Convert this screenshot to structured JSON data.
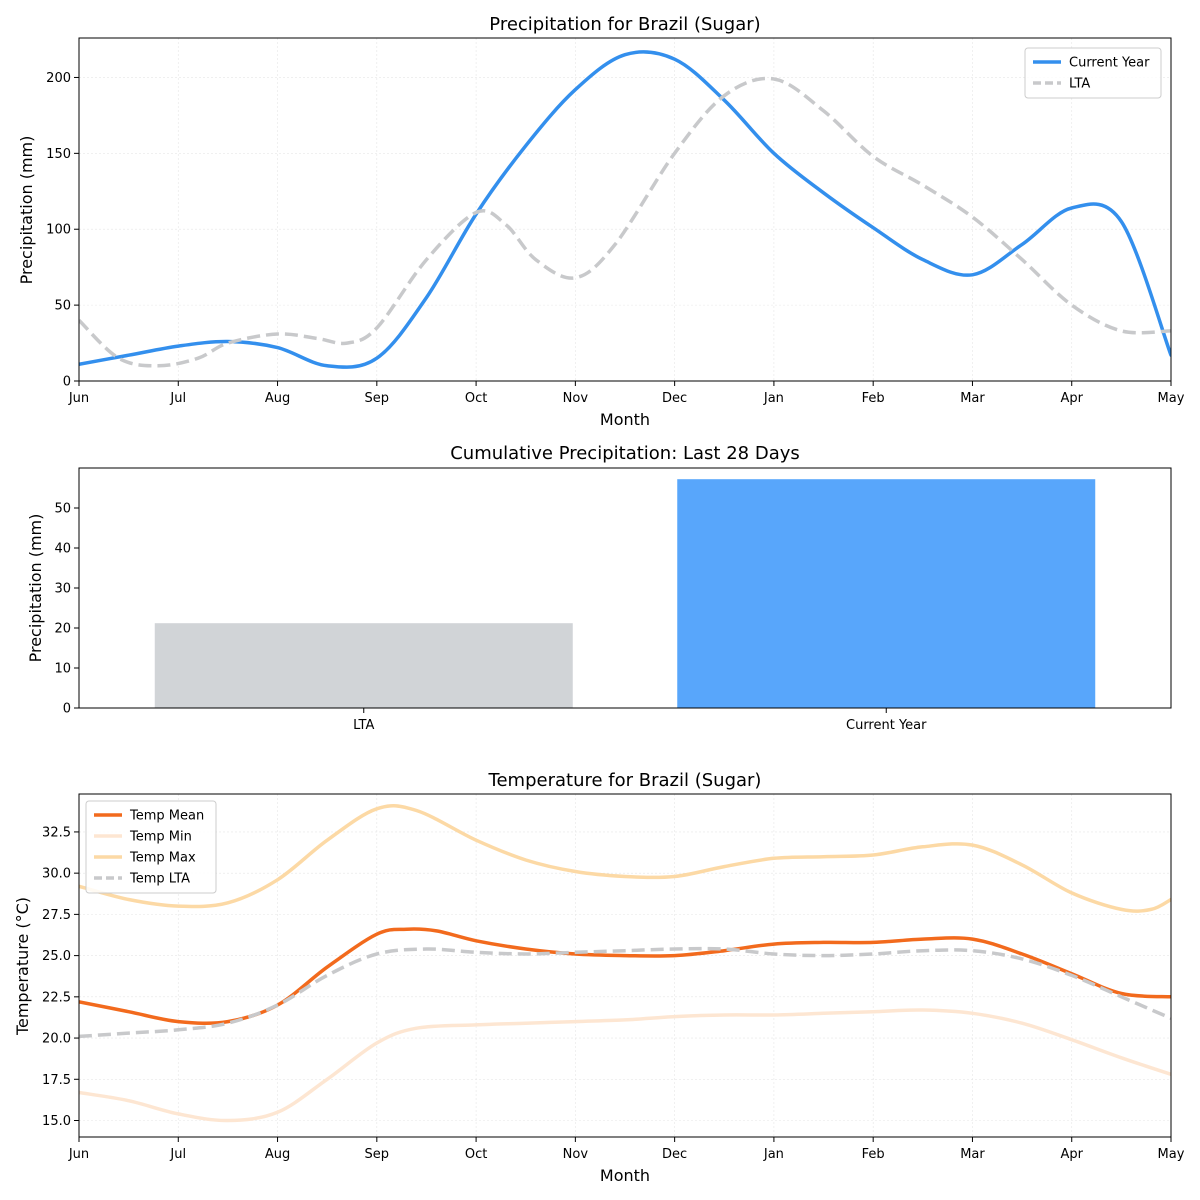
{
  "chart_data": [
    {
      "type": "line",
      "title": "Precipitation for Brazil (Sugar)",
      "xlabel": "Month",
      "ylabel": "Precipitation (mm)",
      "x_ticks": [
        "Jun",
        "Jul",
        "Aug",
        "Sep",
        "Oct",
        "Nov",
        "Dec",
        "Jan",
        "Feb",
        "Mar",
        "Apr",
        "May"
      ],
      "x_range": [
        0,
        11
      ],
      "ylim": [
        0,
        226
      ],
      "y_ticks": [
        0,
        50,
        100,
        150,
        200
      ],
      "grid": true,
      "legend_position": "top-right",
      "series": [
        {
          "name": "Current Year",
          "color": "#338fed",
          "style": "solid",
          "points": [
            [
              0,
              11
            ],
            [
              0.5,
              17
            ],
            [
              1,
              23
            ],
            [
              1.5,
              26
            ],
            [
              2,
              22
            ],
            [
              2.5,
              10
            ],
            [
              3,
              15
            ],
            [
              3.5,
              55
            ],
            [
              4,
              110
            ],
            [
              4.5,
              155
            ],
            [
              5,
              192
            ],
            [
              5.5,
              215
            ],
            [
              6,
              212
            ],
            [
              6.5,
              185
            ],
            [
              7,
              150
            ],
            [
              7.5,
              124
            ],
            [
              8,
              101
            ],
            [
              8.5,
              80
            ],
            [
              9,
              70
            ],
            [
              9.5,
              90
            ],
            [
              10,
              114
            ],
            [
              10.5,
              105
            ],
            [
              11,
              17
            ]
          ]
        },
        {
          "name": "LTA",
          "color": "#c8c9cb",
          "style": "dashed",
          "points": [
            [
              0,
              40
            ],
            [
              0.4,
              15
            ],
            [
              0.8,
              10
            ],
            [
              1.2,
              15
            ],
            [
              1.5,
              25
            ],
            [
              2,
              31
            ],
            [
              2.4,
              28
            ],
            [
              2.7,
              25
            ],
            [
              3,
              35
            ],
            [
              3.5,
              80
            ],
            [
              4,
              111
            ],
            [
              4.3,
              103
            ],
            [
              4.6,
              80
            ],
            [
              5,
              68
            ],
            [
              5.4,
              90
            ],
            [
              6,
              150
            ],
            [
              6.5,
              188
            ],
            [
              7,
              199
            ],
            [
              7.5,
              178
            ],
            [
              8,
              148
            ],
            [
              8.5,
              129
            ],
            [
              9,
              108
            ],
            [
              9.5,
              80
            ],
            [
              10,
              50
            ],
            [
              10.5,
              33
            ],
            [
              11,
              33
            ]
          ]
        }
      ]
    },
    {
      "type": "bar",
      "title": "Cumulative Precipitation: Last 28 Days",
      "xlabel": "",
      "ylabel": "Precipitation (mm)",
      "categories": [
        "LTA",
        "Current Year"
      ],
      "values": [
        21.2,
        57.2
      ],
      "colors": [
        "#d1d4d7",
        "#58a6fb"
      ],
      "ylim": [
        0,
        60
      ],
      "y_ticks": [
        0,
        10,
        20,
        30,
        40,
        50
      ]
    },
    {
      "type": "line",
      "title": "Temperature for Brazil (Sugar)",
      "xlabel": "Month",
      "ylabel": "Temperature (°C)",
      "x_ticks": [
        "Jun",
        "Jul",
        "Aug",
        "Sep",
        "Oct",
        "Nov",
        "Dec",
        "Jan",
        "Feb",
        "Mar",
        "Apr",
        "May"
      ],
      "x_range": [
        0,
        11
      ],
      "ylim": [
        14.0,
        34.8
      ],
      "y_ticks": [
        15.0,
        17.5,
        20.0,
        22.5,
        25.0,
        27.5,
        30.0,
        32.5
      ],
      "y_tick_labels": [
        "15.0",
        "17.5",
        "20.0",
        "22.5",
        "25.0",
        "27.5",
        "30.0",
        "32.5"
      ],
      "grid": true,
      "legend_position": "top-left",
      "series": [
        {
          "name": "Temp Mean",
          "color": "#f26a1d",
          "style": "solid",
          "points": [
            [
              0,
              22.2
            ],
            [
              0.5,
              21.6
            ],
            [
              1,
              21.0
            ],
            [
              1.5,
              21.0
            ],
            [
              2,
              22.0
            ],
            [
              2.5,
              24.3
            ],
            [
              3,
              26.3
            ],
            [
              3.3,
              26.6
            ],
            [
              3.6,
              26.5
            ],
            [
              4,
              25.9
            ],
            [
              4.5,
              25.4
            ],
            [
              5,
              25.1
            ],
            [
              5.5,
              25.0
            ],
            [
              6,
              25.0
            ],
            [
              6.5,
              25.3
            ],
            [
              7,
              25.7
            ],
            [
              7.5,
              25.8
            ],
            [
              8,
              25.8
            ],
            [
              8.5,
              26.0
            ],
            [
              9,
              26.0
            ],
            [
              9.5,
              25.1
            ],
            [
              10,
              23.9
            ],
            [
              10.5,
              22.7
            ],
            [
              11,
              22.5
            ]
          ]
        },
        {
          "name": "Temp Min",
          "color": "#fde6d2",
          "style": "solid",
          "points": [
            [
              0,
              16.7
            ],
            [
              0.5,
              16.2
            ],
            [
              1,
              15.4
            ],
            [
              1.5,
              15.0
            ],
            [
              2,
              15.5
            ],
            [
              2.5,
              17.5
            ],
            [
              3,
              19.7
            ],
            [
              3.4,
              20.6
            ],
            [
              4,
              20.8
            ],
            [
              4.5,
              20.9
            ],
            [
              5,
              21.0
            ],
            [
              5.5,
              21.1
            ],
            [
              6,
              21.3
            ],
            [
              6.5,
              21.4
            ],
            [
              7,
              21.4
            ],
            [
              7.5,
              21.5
            ],
            [
              8,
              21.6
            ],
            [
              8.5,
              21.7
            ],
            [
              9,
              21.5
            ],
            [
              9.5,
              20.9
            ],
            [
              10,
              19.9
            ],
            [
              10.5,
              18.8
            ],
            [
              11,
              17.8
            ]
          ]
        },
        {
          "name": "Temp Max",
          "color": "#fcd9a5",
          "style": "solid",
          "points": [
            [
              0,
              29.2
            ],
            [
              0.5,
              28.4
            ],
            [
              1,
              28.0
            ],
            [
              1.5,
              28.2
            ],
            [
              2,
              29.6
            ],
            [
              2.5,
              32.0
            ],
            [
              3,
              33.9
            ],
            [
              3.4,
              33.8
            ],
            [
              4,
              32.0
            ],
            [
              4.5,
              30.8
            ],
            [
              5,
              30.1
            ],
            [
              5.5,
              29.8
            ],
            [
              6,
              29.8
            ],
            [
              6.5,
              30.4
            ],
            [
              7,
              30.9
            ],
            [
              7.5,
              31.0
            ],
            [
              8,
              31.1
            ],
            [
              8.5,
              31.6
            ],
            [
              9,
              31.7
            ],
            [
              9.5,
              30.5
            ],
            [
              10,
              28.8
            ],
            [
              10.5,
              27.8
            ],
            [
              10.8,
              27.8
            ],
            [
              11,
              28.4
            ]
          ]
        },
        {
          "name": "Temp LTA",
          "color": "#c8c9cb",
          "style": "dashed",
          "points": [
            [
              0,
              20.1
            ],
            [
              0.5,
              20.3
            ],
            [
              1,
              20.5
            ],
            [
              1.5,
              20.9
            ],
            [
              2,
              22.0
            ],
            [
              2.5,
              23.8
            ],
            [
              3,
              25.1
            ],
            [
              3.5,
              25.4
            ],
            [
              4,
              25.2
            ],
            [
              4.5,
              25.1
            ],
            [
              5,
              25.2
            ],
            [
              5.5,
              25.3
            ],
            [
              6,
              25.4
            ],
            [
              6.5,
              25.4
            ],
            [
              7,
              25.1
            ],
            [
              7.5,
              25.0
            ],
            [
              8,
              25.1
            ],
            [
              8.5,
              25.3
            ],
            [
              9,
              25.3
            ],
            [
              9.5,
              24.8
            ],
            [
              10,
              23.8
            ],
            [
              10.5,
              22.5
            ],
            [
              11,
              21.2
            ]
          ]
        }
      ]
    }
  ]
}
